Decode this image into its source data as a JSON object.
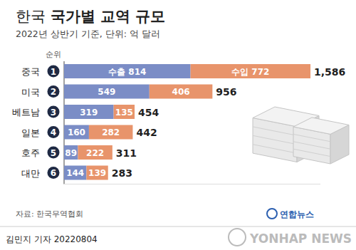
{
  "chart_data": {
    "type": "bar",
    "orientation": "horizontal",
    "stacked": true,
    "data_labels": true,
    "tick_labels": false,
    "grid": false,
    "title": "한국 국가별 교역 규모",
    "subtitle": "2022년 상반기 기준, 단위: 억 달러",
    "rank_header": "순위",
    "categories": [
      "중국",
      "미국",
      "베트남",
      "일본",
      "호주",
      "대만"
    ],
    "ranks": [
      1,
      2,
      3,
      4,
      5,
      6
    ],
    "series": [
      {
        "name": "수출",
        "color": "#7b8dc6",
        "values": [
          814,
          549,
          319,
          160,
          89,
          144
        ],
        "value_labels": [
          "수출 814",
          "549",
          "319",
          "160",
          "89",
          "144"
        ]
      },
      {
        "name": "수입",
        "color": "#e8946b",
        "values": [
          772,
          406,
          135,
          282,
          222,
          139
        ],
        "value_labels": [
          "수입 772",
          "406",
          "135",
          "282",
          "222",
          "139"
        ]
      }
    ],
    "totals": [
      1586,
      956,
      454,
      442,
      311,
      283
    ],
    "total_labels": [
      "1,586",
      "956",
      "454",
      "442",
      "311",
      "283"
    ],
    "xlim": [
      0,
      1650
    ],
    "source": "자료: 한국무역협회",
    "byline": "김민지 기자 20220804",
    "logo_text": "연합뉴스",
    "watermark": "YONHAP NEWS"
  }
}
